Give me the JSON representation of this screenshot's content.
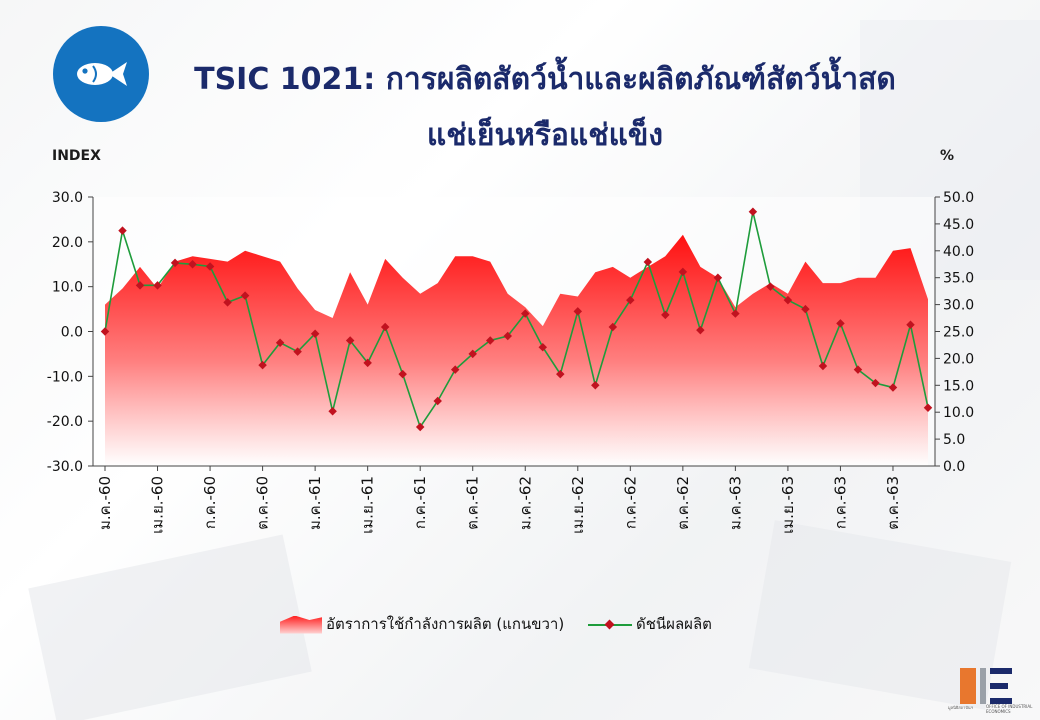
{
  "header": {
    "title_line1": "TSIC 1021: การผลิตสัตว์น้ำและผลิตภัณฑ์สัตว์น้ำสด",
    "title_line2": "แช่เย็นหรือแช่แข็ง",
    "icon": "fish-icon",
    "icon_color": "#1473c0"
  },
  "chart_data": {
    "type": "line",
    "left_axis_label": "INDEX",
    "right_axis_label": "%",
    "left_ylim": [
      -30,
      30
    ],
    "left_ticks": [
      "30.0",
      "20.0",
      "10.0",
      "0.0",
      "-10.0",
      "-20.0",
      "-30.0"
    ],
    "right_ylim": [
      0,
      50
    ],
    "right_ticks": [
      "50.0",
      "45.0",
      "40.0",
      "35.0",
      "30.0",
      "25.0",
      "20.0",
      "15.0",
      "10.0",
      "5.0",
      "0.0"
    ],
    "x_tick_labels": [
      "ม.ค.-60",
      "เม.ย.-60",
      "ก.ค.-60",
      "ต.ค.-60",
      "ม.ค.-61",
      "เม.ย.-61",
      "ก.ค.-61",
      "ต.ค.-61",
      "ม.ค.-62",
      "เม.ย.-62",
      "ก.ค.-62",
      "ต.ค.-62",
      "ม.ค.-63",
      "เม.ย.-63",
      "ก.ค.-63",
      "ต.ค.-63"
    ],
    "x_tick_step": 3,
    "n_points": 48,
    "series": [
      {
        "name": "อัตราการใช้กำลังการผลิต (แกนขวา)",
        "type": "area",
        "axis": "right",
        "color": "#ff1a1a",
        "values": [
          30,
          33,
          37,
          33,
          38,
          39,
          38.5,
          38,
          40,
          39,
          38,
          33,
          29,
          27.5,
          36,
          30,
          38.5,
          35,
          32,
          34,
          39,
          39,
          38,
          32,
          29.5,
          26,
          32,
          31.5,
          36,
          37,
          35,
          37,
          39,
          43,
          37,
          35,
          29.5,
          32,
          34,
          32,
          38,
          34,
          34,
          35,
          35,
          40,
          40.5,
          31
        ]
      },
      {
        "name": "ดัชนีผลผลิต",
        "type": "line",
        "axis": "left",
        "color": "#1e9c3b",
        "marker_color": "#c1121f",
        "values": [
          0,
          22.5,
          10.3,
          10.3,
          15.3,
          15,
          14.5,
          6.5,
          8,
          -7.5,
          -2.5,
          -4.5,
          -0.5,
          -17.8,
          -2,
          -7,
          1,
          -9.5,
          -21.3,
          -15.5,
          -8.5,
          -5,
          -2,
          -1,
          4,
          -3.5,
          -9.5,
          4.5,
          -12,
          1,
          7,
          15.5,
          3.7,
          13.3,
          0.3,
          12,
          4,
          26.7,
          10,
          7,
          5,
          -7.7,
          1.8,
          -8.5,
          -11.5,
          -12.5,
          1.5,
          -17
        ]
      }
    ],
    "legend_position": "bottom",
    "grid": false
  },
  "logo": {
    "text_left": "มูลนิธิสถาบันฯ",
    "text_right": "OFFICE OF INDUSTRIAL ECONOMICS"
  }
}
